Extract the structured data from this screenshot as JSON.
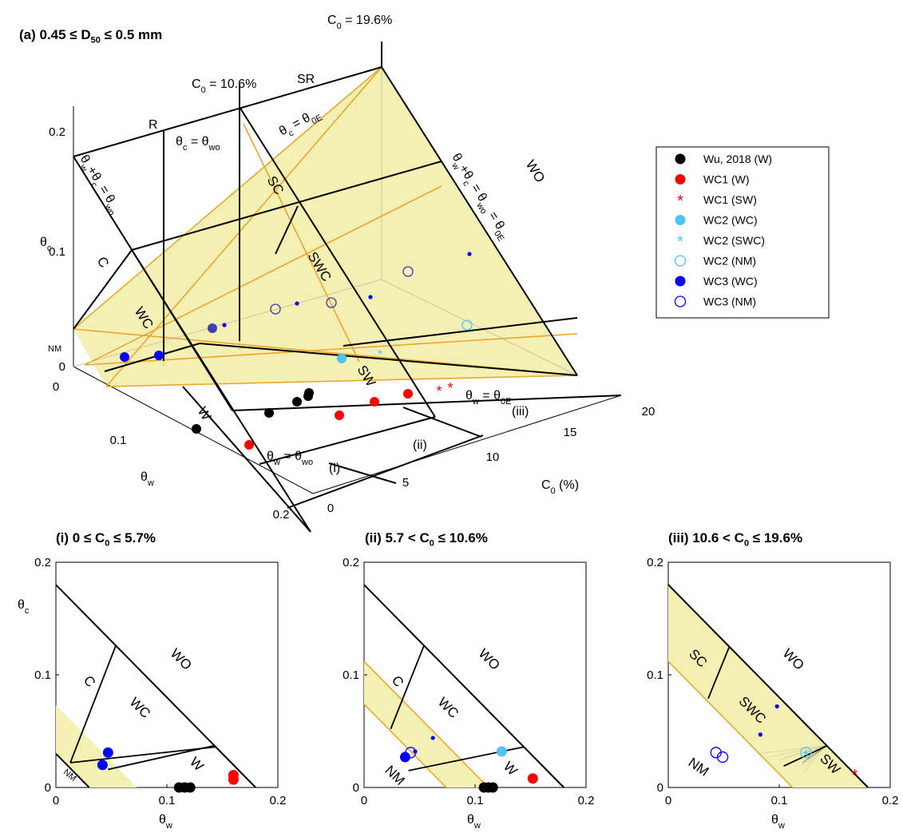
{
  "chart_data": [
    {
      "type": "scatter",
      "panel": "(a)",
      "title": "(a) 0.45 ≤ D50 ≤ 0.5 mm",
      "title_parts": {
        "pre": "(a) 0.45 ≤  D",
        "sub": "50",
        "post": " ≤ 0.5 mm"
      },
      "axes": {
        "x": {
          "label": "θw",
          "ticks": [
            "0",
            "0.1",
            "0.2"
          ],
          "lim": [
            0,
            0.2
          ]
        },
        "y": {
          "label": "C0 (%)",
          "ticks": [
            "0",
            "5",
            "10",
            "15",
            "20"
          ],
          "lim": [
            0,
            20
          ]
        },
        "z": {
          "label": "θc",
          "ticks": [
            "0",
            "0.1",
            "0.2"
          ],
          "lim": [
            0,
            0.2
          ]
        }
      },
      "boundary_labels": [
        "C0 = 10.6%",
        "C0 = 19.6%",
        "SR",
        "R",
        "θc = θwo",
        "θc = θ0E",
        "θw+θc = θwo",
        "θw+θc = θwo = θ0E",
        "θw = θwo",
        "θw = θ0E"
      ],
      "regions": [
        "C",
        "WC",
        "NM",
        "W",
        "SC",
        "SWC",
        "SW",
        "WO"
      ],
      "sections": [
        "(i)",
        "(ii)",
        "(iii)"
      ],
      "series": [
        {
          "name": "Wu, 2018 (W)",
          "marker": "filled-circle",
          "color": "#000000",
          "points": [
            {
              "w": 0.11,
              "C0": 0,
              "c": 0
            },
            {
              "w": 0.11,
              "C0": 7,
              "c": 0
            },
            {
              "w": 0.115,
              "C0": 10,
              "c": 0
            },
            {
              "w": 0.12,
              "C0": 10.5,
              "c": 0
            },
            {
              "w": 0.125,
              "C0": 10.5,
              "c": 0
            }
          ]
        },
        {
          "name": "WC1 (W)",
          "marker": "filled-circle",
          "color": "#ff0000",
          "points": [
            {
              "w": 0.16,
              "C0": 0.5,
              "c": 0.01
            },
            {
              "w": 0.155,
              "C0": 7,
              "c": 0.01
            },
            {
              "w": 0.155,
              "C0": 11,
              "c": 0.01
            },
            {
              "w": 0.155,
              "C0": 13,
              "c": 0.01
            }
          ]
        },
        {
          "name": "WC1 (SW)",
          "marker": "asterisk",
          "color": "#ff0000",
          "points": [
            {
              "w": 0.168,
              "C0": 15,
              "c": 0.012
            },
            {
              "w": 0.168,
              "C0": 16,
              "c": 0.012
            }
          ]
        },
        {
          "name": "WC2 (WC)",
          "marker": "filled-circle",
          "color": "#4fc3f7",
          "points": [
            {
              "w": 0.12,
              "C0": 7,
              "c": 0.03
            }
          ]
        },
        {
          "name": "WC2 (SWC)",
          "marker": "asterisk",
          "color": "#4fc3f7",
          "points": [
            {
              "w": 0.12,
              "C0": 12,
              "c": 0.03
            }
          ]
        },
        {
          "name": "WC2 (NM)",
          "marker": "open-circle",
          "color": "#4fc3f7",
          "points": [
            {
              "w": 0.12,
              "C0": 17,
              "c": 0.03
            }
          ]
        },
        {
          "name": "WC3 (WC)",
          "marker": "filled-circle",
          "color": "#0000ff",
          "points": [
            {
              "w": 0.04,
              "C0": 1,
              "c": 0.03
            },
            {
              "w": 0.045,
              "C0": 3,
              "c": 0.02
            },
            {
              "w": 0.04,
              "C0": 7,
              "c": 0.03
            }
          ]
        },
        {
          "name": "WC3 (NM)",
          "marker": "open-circle",
          "color": "#0000ff",
          "points": [
            {
              "w": 0.045,
              "C0": 10,
              "c": 0.03
            },
            {
              "w": 0.045,
              "C0": 13,
              "c": 0.03
            },
            {
              "w": 0.05,
              "C0": 18,
              "c": 0.03
            }
          ]
        }
      ]
    },
    {
      "type": "scatter",
      "panel": "(i)",
      "title": "(i) 0 ≤ C0 ≤ 5.7%",
      "title_parts": {
        "pre": "(i) 0 ≤ C",
        "sub": "0",
        "post": " ≤ 5.7%"
      },
      "xlabel": "θw",
      "ylabel": "θc",
      "xlim": [
        0,
        0.2
      ],
      "ylim": [
        0,
        0.2
      ],
      "xticks": [
        "0",
        "0.1",
        "0.2"
      ],
      "yticks": [
        "0",
        "0.1",
        "0.2"
      ],
      "regions": [
        "C",
        "WO",
        "WC",
        "W",
        "NM"
      ],
      "series": [
        {
          "name": "Wu, 2018 (W)",
          "marker": "filled-circle",
          "color": "#000000",
          "x": [
            0.111,
            0.116,
            0.121
          ],
          "y": [
            0,
            0,
            0
          ]
        },
        {
          "name": "WC1 (W)",
          "marker": "filled-circle",
          "color": "#ff0000",
          "x": [
            0.16,
            0.16
          ],
          "y": [
            0.007,
            0.011
          ]
        },
        {
          "name": "WC3 (WC)",
          "marker": "filled-circle",
          "color": "#0000ff",
          "x": [
            0.042,
            0.047
          ],
          "y": [
            0.02,
            0.031
          ]
        }
      ]
    },
    {
      "type": "scatter",
      "panel": "(ii)",
      "title": "(ii) 5.7 < C0 ≤ 10.6%",
      "title_parts": {
        "pre": "(ii) 5.7 < C",
        "sub": "0",
        "post": " ≤ 10.6%"
      },
      "xlabel": "θw",
      "ylabel": "θc",
      "xlim": [
        0,
        0.2
      ],
      "ylim": [
        0,
        0.2
      ],
      "xticks": [
        "0",
        "0.1",
        "0.2"
      ],
      "yticks": [
        "0",
        "0.1",
        "0.2"
      ],
      "regions": [
        "C",
        "WO",
        "WC",
        "W",
        "NM"
      ],
      "series": [
        {
          "name": "Wu, 2018 (W)",
          "marker": "filled-circle",
          "color": "#000000",
          "x": [
            0.108,
            0.112,
            0.116
          ],
          "y": [
            0,
            0,
            0
          ]
        },
        {
          "name": "WC1 (W)",
          "marker": "filled-circle",
          "color": "#ff0000",
          "x": [
            0.152
          ],
          "y": [
            0.008
          ]
        },
        {
          "name": "WC2 (WC)",
          "marker": "filled-circle",
          "color": "#4fc3f7",
          "x": [
            0.124
          ],
          "y": [
            0.032
          ]
        },
        {
          "name": "WC3 (WC)",
          "marker": "filled-circle",
          "color": "#0000ff",
          "x": [
            0.037
          ],
          "y": [
            0.027
          ]
        },
        {
          "name": "WC3 (WC) small",
          "marker": "dot",
          "color": "#0000ff",
          "x": [
            0.046,
            0.062
          ],
          "y": [
            0.032,
            0.044
          ]
        },
        {
          "name": "WC3 (NM)",
          "marker": "open-circle",
          "color": "#0000ff",
          "x": [
            0.042
          ],
          "y": [
            0.031
          ]
        }
      ]
    },
    {
      "type": "scatter",
      "panel": "(iii)",
      "title": "(iii) 10.6 < C0 ≤ 19.6%",
      "title_parts": {
        "pre": "(iii) 10.6 < C",
        "sub": "0",
        "post": " ≤ 19.6%"
      },
      "xlabel": "θw",
      "ylabel": "θc",
      "xlim": [
        0,
        0.2
      ],
      "ylim": [
        0,
        0.2
      ],
      "xticks": [
        "0",
        "0.1",
        "0.2"
      ],
      "yticks": [
        "0",
        "0.1",
        "0.2"
      ],
      "regions": [
        "SC",
        "WO",
        "SWC",
        "NM",
        "SW"
      ],
      "series": [
        {
          "name": "WC1 (SW)",
          "marker": "asterisk",
          "color": "#ff0000",
          "x": [
            0.168
          ],
          "y": [
            0.012
          ]
        },
        {
          "name": "WC2 (SWC)",
          "marker": "asterisk",
          "color": "#4fc3f7",
          "x": [
            0.124
          ],
          "y": [
            0.029
          ]
        },
        {
          "name": "WC2 (NM)",
          "marker": "open-circle",
          "color": "#4fc3f7",
          "x": [
            0.124
          ],
          "y": [
            0.031
          ]
        },
        {
          "name": "WC3 (WC)",
          "marker": "dot",
          "color": "#0000ff",
          "x": [
            0.083,
            0.098
          ],
          "y": [
            0.047,
            0.072
          ]
        },
        {
          "name": "WC3 (NM)",
          "marker": "open-circle",
          "color": "#0000ff",
          "x": [
            0.043,
            0.049
          ],
          "y": [
            0.031,
            0.027
          ]
        }
      ]
    }
  ],
  "legend": {
    "placement": "right",
    "entries": [
      {
        "label": "Wu, 2018 (W)",
        "marker": "filled-circle",
        "color": "#000000"
      },
      {
        "label": "WC1 (W)",
        "marker": "filled-circle",
        "color": "#ff0000"
      },
      {
        "label": "WC1 (SW)",
        "marker": "asterisk",
        "color": "#ff0000"
      },
      {
        "label": "WC2 (WC)",
        "marker": "filled-circle",
        "color": "#4fc3f7"
      },
      {
        "label": "WC2 (SWC)",
        "marker": "asterisk",
        "color": "#4fc3f7"
      },
      {
        "label": "WC2 (NM)",
        "marker": "open-circle",
        "color": "#4fc3f7"
      },
      {
        "label": "WC3 (WC)",
        "marker": "filled-circle",
        "color": "#0000ff"
      },
      {
        "label": "WC3 (NM)",
        "marker": "open-circle",
        "color": "#0000ff"
      }
    ]
  },
  "colors": {
    "shade": "#f4f0b4",
    "boundary_orange": "#e9a72a",
    "black": "#000000",
    "red": "#ff0000",
    "light_blue": "#4fc3f7",
    "blue": "#0000ff"
  }
}
